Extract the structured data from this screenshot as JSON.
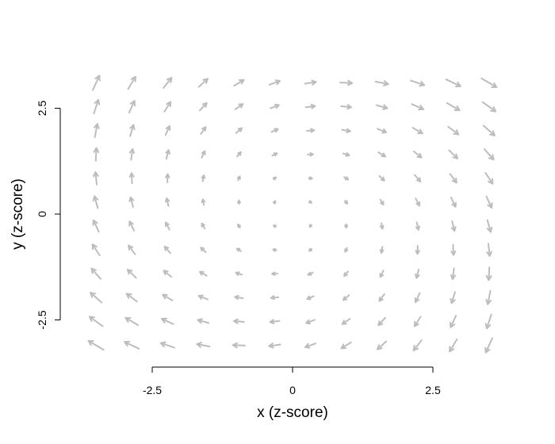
{
  "chart_data": {
    "type": "vector-field",
    "title": "",
    "xlabel": "x (z-score)",
    "ylabel": "y (z-score)",
    "xticks": [
      -2.5,
      0,
      2.5
    ],
    "yticks": [
      -2.5,
      0,
      2.5
    ],
    "xtick_labels": [
      "-2.5",
      "0",
      "2.5"
    ],
    "ytick_labels": [
      "-2.5",
      "0",
      "2.5"
    ],
    "xlim": [
      -3.7,
      3.7
    ],
    "ylim": [
      -3.6,
      3.6
    ],
    "grid": false,
    "arrow_color": "#bdbdbd",
    "field": {
      "x_range": [
        -3.5,
        3.5
      ],
      "y_range": [
        -3.1,
        3.1
      ],
      "nx": 12,
      "ny": 12
    }
  }
}
